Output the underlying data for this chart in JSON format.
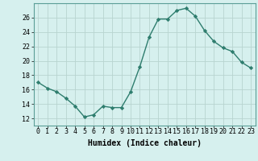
{
  "x": [
    0,
    1,
    2,
    3,
    4,
    5,
    6,
    7,
    8,
    9,
    10,
    11,
    12,
    13,
    14,
    15,
    16,
    17,
    18,
    19,
    20,
    21,
    22,
    23
  ],
  "y": [
    17,
    16.2,
    15.7,
    14.8,
    13.7,
    12.2,
    12.5,
    13.7,
    13.5,
    13.5,
    15.7,
    19.2,
    23.3,
    25.8,
    25.8,
    27.0,
    27.3,
    26.2,
    24.2,
    22.7,
    21.8,
    21.3,
    19.8,
    19.0
  ],
  "line_color": "#2e7d6e",
  "marker": "D",
  "markersize": 2.2,
  "linewidth": 1.0,
  "bg_color": "#d6f0ee",
  "grid_color": "#b8d4d0",
  "xlabel": "Humidex (Indice chaleur)",
  "xlabel_fontsize": 7,
  "xlabel_weight": "bold",
  "ylabel_ticks": [
    12,
    14,
    16,
    18,
    20,
    22,
    24,
    26
  ],
  "ylim": [
    11.0,
    28.0
  ],
  "xlim": [
    -0.5,
    23.5
  ],
  "xtick_labels": [
    "0",
    "1",
    "2",
    "3",
    "4",
    "5",
    "6",
    "7",
    "8",
    "9",
    "10",
    "11",
    "12",
    "13",
    "14",
    "15",
    "16",
    "17",
    "18",
    "19",
    "20",
    "21",
    "22",
    "23"
  ],
  "tick_fontsize": 6.0
}
